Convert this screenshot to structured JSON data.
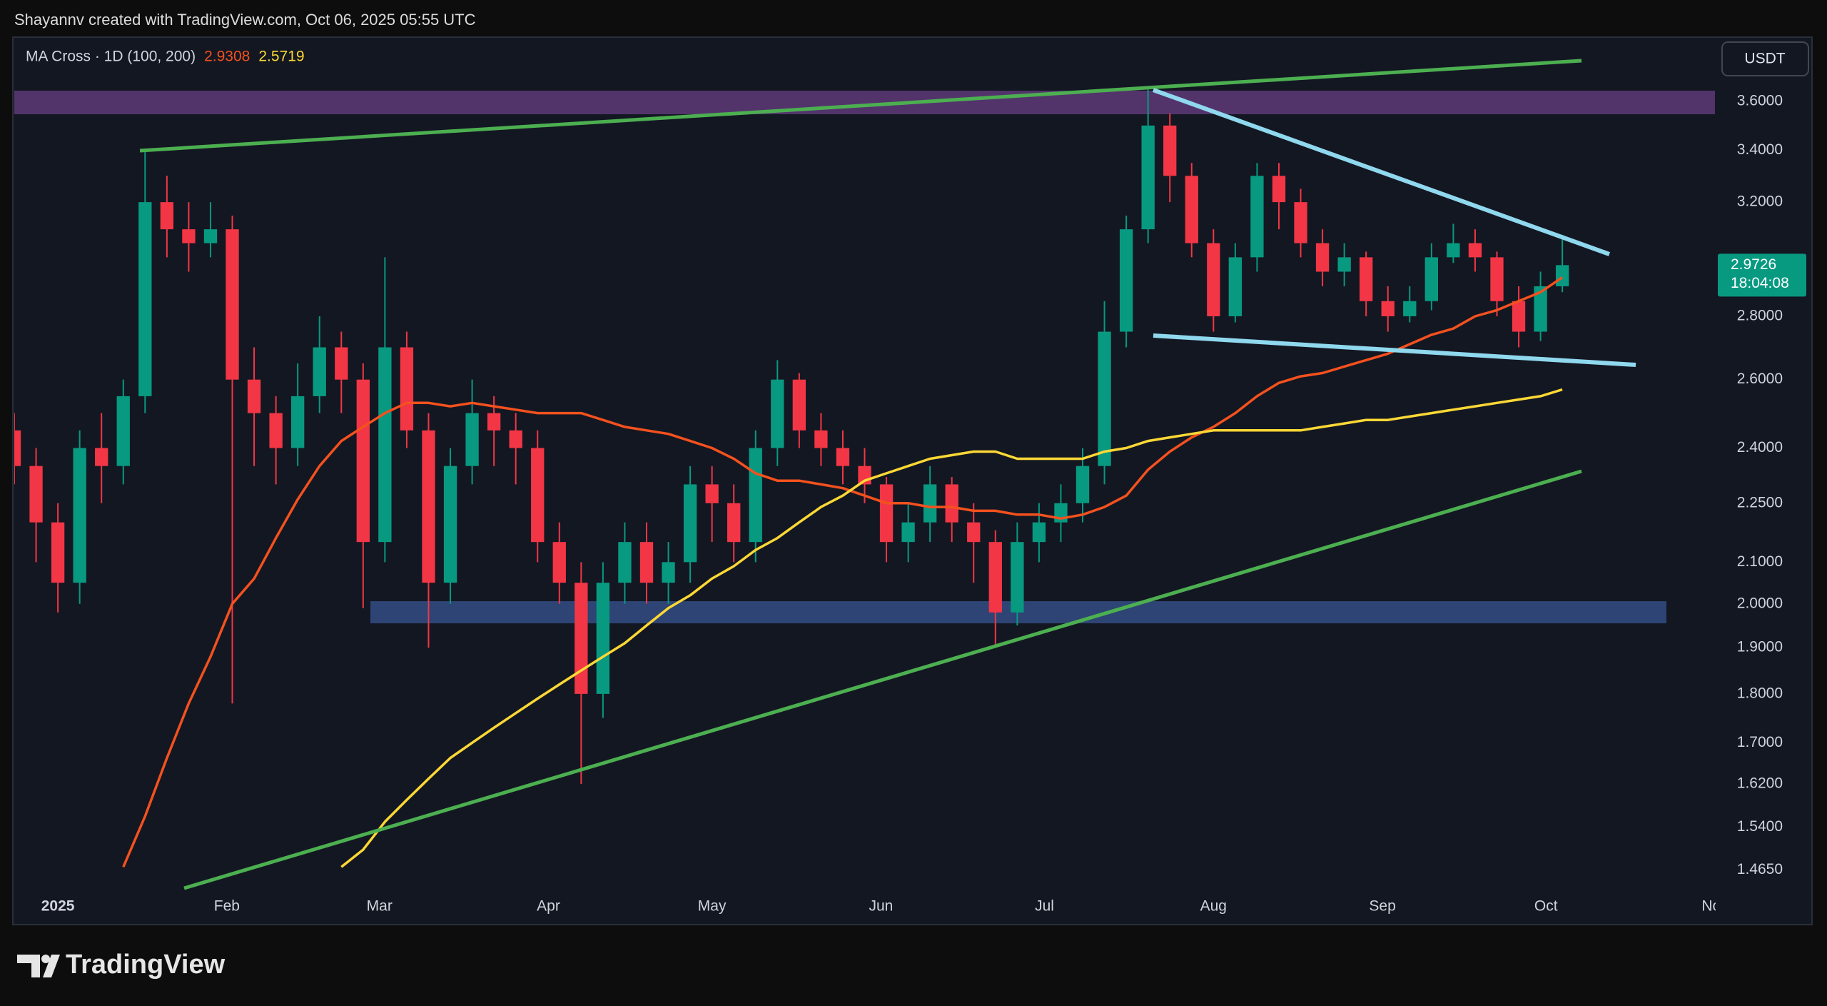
{
  "header": {
    "attribution": "Shayannv created with TradingView.com, Oct 06, 2025 05:55 UTC"
  },
  "footer": {
    "brand": "TradingView"
  },
  "chart_data": {
    "type": "candlestick",
    "currency": "USDT",
    "indicator_label": "MA Cross · 1D (100, 200)",
    "indicator_values": [
      2.9308,
      2.5719
    ],
    "last_price": 2.9726,
    "countdown": "18:04:08",
    "up_color": "#089981",
    "down_color": "#f23645",
    "log_scale": true,
    "grid": false,
    "xlim": [
      0,
      78
    ],
    "xticks": [
      {
        "value": 2,
        "label": "2025"
      },
      {
        "value": 9.75,
        "label": "Feb"
      },
      {
        "value": 16.75,
        "label": "Mar"
      },
      {
        "value": 24.5,
        "label": "Apr"
      },
      {
        "value": 32,
        "label": "May"
      },
      {
        "value": 39.75,
        "label": "Jun"
      },
      {
        "value": 47.25,
        "label": "Jul"
      },
      {
        "value": 55,
        "label": "Aug"
      },
      {
        "value": 62.75,
        "label": "Sep"
      },
      {
        "value": 70.25,
        "label": "Oct"
      },
      {
        "value": 78,
        "label": "Nov"
      }
    ],
    "ylim": [
      1.428,
      3.875
    ],
    "yticks": [
      {
        "value": 3.6,
        "label": "3.6000"
      },
      {
        "value": 3.4,
        "label": "3.4000"
      },
      {
        "value": 3.2,
        "label": "3.2000"
      },
      {
        "value": 2.8,
        "label": "2.8000"
      },
      {
        "value": 2.6,
        "label": "2.6000"
      },
      {
        "value": 2.4,
        "label": "2.4000"
      },
      {
        "value": 2.25,
        "label": "2.2500"
      },
      {
        "value": 2.1,
        "label": "2.1000"
      },
      {
        "value": 2.0,
        "label": "2.0000"
      },
      {
        "value": 1.9,
        "label": "1.9000"
      },
      {
        "value": 1.8,
        "label": "1.8000"
      },
      {
        "value": 1.7,
        "label": "1.7000"
      },
      {
        "value": 1.62,
        "label": "1.6200"
      },
      {
        "value": 1.54,
        "label": "1.5400"
      },
      {
        "value": 1.465,
        "label": "1.4650"
      }
    ],
    "open": [
      2.45,
      2.35,
      2.2,
      2.05,
      2.4,
      2.35,
      2.55,
      3.2,
      3.1,
      3.05,
      3.1,
      2.6,
      2.5,
      2.4,
      2.55,
      2.7,
      2.6,
      2.15,
      2.7,
      2.45,
      2.05,
      2.35,
      2.5,
      2.45,
      2.4,
      2.15,
      2.05,
      1.8,
      2.05,
      2.15,
      2.05,
      2.1,
      2.3,
      2.25,
      2.15,
      2.4,
      2.6,
      2.45,
      2.4,
      2.35,
      2.3,
      2.15,
      2.2,
      2.3,
      2.2,
      2.15,
      1.98,
      2.15,
      2.2,
      2.25,
      2.35,
      2.75,
      3.1,
      3.5,
      3.3,
      3.05,
      2.8,
      3.0,
      3.3,
      3.2,
      3.05,
      2.95,
      3.0,
      2.85,
      2.8,
      2.85,
      3.0,
      3.05,
      3.0,
      2.85,
      2.75,
      2.9
    ],
    "high": [
      2.5,
      2.4,
      2.25,
      2.45,
      2.5,
      2.6,
      3.4,
      3.3,
      3.2,
      3.2,
      3.15,
      2.7,
      2.55,
      2.65,
      2.8,
      2.75,
      2.65,
      3.0,
      2.75,
      2.5,
      2.4,
      2.6,
      2.55,
      2.5,
      2.45,
      2.2,
      2.1,
      2.1,
      2.2,
      2.2,
      2.15,
      2.35,
      2.35,
      2.3,
      2.45,
      2.66,
      2.62,
      2.5,
      2.45,
      2.4,
      2.32,
      2.25,
      2.35,
      2.32,
      2.25,
      2.18,
      2.2,
      2.25,
      2.3,
      2.4,
      2.85,
      3.15,
      3.65,
      3.55,
      3.35,
      3.1,
      3.05,
      3.35,
      3.35,
      3.25,
      3.1,
      3.05,
      3.02,
      2.9,
      2.9,
      3.05,
      3.12,
      3.1,
      3.02,
      2.9,
      2.95,
      3.08
    ],
    "low": [
      2.3,
      2.1,
      1.98,
      2.0,
      2.25,
      2.3,
      2.5,
      3.0,
      2.95,
      3.0,
      1.78,
      2.35,
      2.3,
      2.35,
      2.5,
      2.5,
      1.99,
      2.1,
      2.4,
      1.9,
      2.0,
      2.3,
      2.35,
      2.3,
      2.1,
      2.0,
      1.62,
      1.75,
      2.0,
      2.0,
      2.0,
      2.05,
      2.15,
      2.1,
      2.1,
      2.35,
      2.4,
      2.35,
      2.3,
      2.25,
      2.1,
      2.1,
      2.15,
      2.15,
      2.05,
      1.9,
      1.95,
      2.1,
      2.15,
      2.2,
      2.3,
      2.7,
      3.05,
      3.2,
      3.0,
      2.75,
      2.78,
      2.95,
      3.1,
      3.0,
      2.9,
      2.9,
      2.8,
      2.75,
      2.78,
      2.82,
      2.98,
      2.95,
      2.8,
      2.7,
      2.72,
      2.88
    ],
    "close": [
      2.35,
      2.2,
      2.05,
      2.4,
      2.35,
      2.55,
      3.2,
      3.1,
      3.05,
      3.1,
      2.6,
      2.5,
      2.4,
      2.55,
      2.7,
      2.6,
      2.15,
      2.7,
      2.45,
      2.05,
      2.35,
      2.5,
      2.45,
      2.4,
      2.15,
      2.05,
      1.8,
      2.05,
      2.15,
      2.05,
      2.1,
      2.3,
      2.25,
      2.15,
      2.4,
      2.6,
      2.45,
      2.4,
      2.35,
      2.3,
      2.15,
      2.2,
      2.3,
      2.2,
      2.15,
      1.98,
      2.15,
      2.2,
      2.25,
      2.35,
      2.75,
      3.1,
      3.5,
      3.3,
      3.05,
      2.8,
      3.0,
      3.3,
      3.2,
      3.05,
      2.95,
      3.0,
      2.85,
      2.8,
      2.85,
      3.0,
      3.05,
      3.0,
      2.85,
      2.75,
      2.9,
      2.9726
    ],
    "series": [
      {
        "color": "#f4511e",
        "values": [
          null,
          null,
          null,
          null,
          null,
          1.47,
          1.56,
          1.67,
          1.78,
          1.88,
          2.0,
          2.06,
          2.16,
          2.26,
          2.35,
          2.42,
          2.46,
          2.5,
          2.53,
          2.53,
          2.52,
          2.53,
          2.52,
          2.51,
          2.5,
          2.5,
          2.5,
          2.48,
          2.46,
          2.45,
          2.44,
          2.42,
          2.4,
          2.37,
          2.33,
          2.31,
          2.31,
          2.3,
          2.29,
          2.27,
          2.25,
          2.25,
          2.24,
          2.24,
          2.23,
          2.23,
          2.22,
          2.22,
          2.21,
          2.22,
          2.24,
          2.27,
          2.34,
          2.39,
          2.43,
          2.46,
          2.5,
          2.55,
          2.59,
          2.61,
          2.62,
          2.64,
          2.66,
          2.68,
          2.71,
          2.74,
          2.76,
          2.8,
          2.82,
          2.85,
          2.88,
          2.93
        ]
      },
      {
        "color": "#fdd835",
        "values": [
          null,
          null,
          null,
          null,
          null,
          null,
          null,
          null,
          null,
          null,
          null,
          null,
          null,
          null,
          null,
          1.47,
          1.5,
          1.55,
          1.59,
          1.63,
          1.67,
          1.7,
          1.73,
          1.76,
          1.79,
          1.82,
          1.85,
          1.88,
          1.91,
          1.95,
          1.99,
          2.02,
          2.06,
          2.09,
          2.13,
          2.16,
          2.2,
          2.24,
          2.27,
          2.31,
          2.33,
          2.35,
          2.37,
          2.38,
          2.39,
          2.39,
          2.37,
          2.37,
          2.37,
          2.37,
          2.39,
          2.4,
          2.42,
          2.43,
          2.44,
          2.45,
          2.45,
          2.45,
          2.45,
          2.45,
          2.46,
          2.47,
          2.48,
          2.48,
          2.49,
          2.5,
          2.51,
          2.52,
          2.53,
          2.54,
          2.55,
          2.57
        ]
      }
    ]
  }
}
